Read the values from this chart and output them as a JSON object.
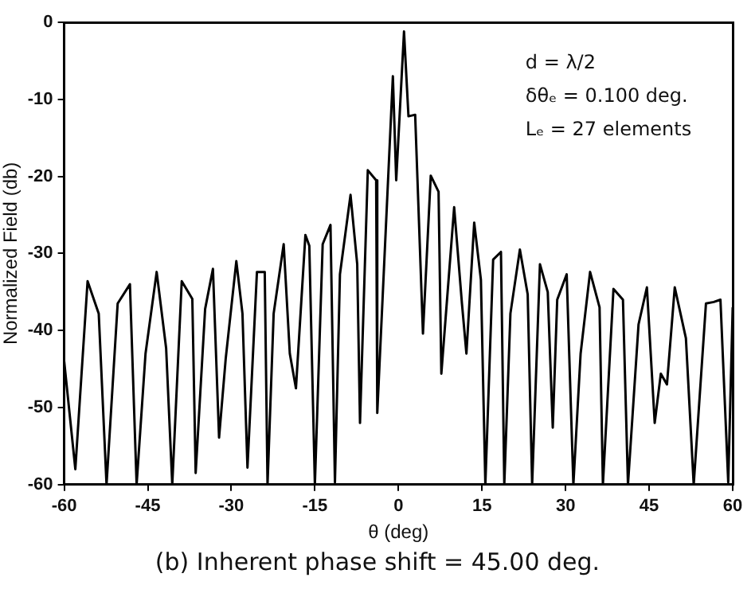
{
  "chart_data": {
    "type": "line",
    "xlabel": "θ (deg)",
    "ylabel": "Normalized Field (db)",
    "annotations": [
      "d = λ/2",
      "δθₑ = 0.100 deg.",
      "Lₑ = 27 elements",
      "(b) Inherent phase shift = 45.00 deg."
    ],
    "x": [
      -60,
      -58,
      -55.8,
      -53.8,
      -52.4,
      -50.4,
      -48.2,
      -47,
      -45.4,
      -43.4,
      -41.7,
      -40.6,
      -38.9,
      -37,
      -36.4,
      -34.7,
      -33.3,
      -32.2,
      -31,
      -29.1,
      -28,
      -27.1,
      -25.4,
      -24,
      -23.5,
      -22.4,
      -20.6,
      -19.5,
      -18.4,
      -16.7,
      -16,
      -15,
      -13.6,
      -12.2,
      -11.4,
      -10.5,
      -8.6,
      -7.4,
      -6.9,
      -5.5,
      -4,
      -3.8,
      -1,
      -0.4,
      1,
      1.8,
      3,
      4.4,
      5.8,
      7.2,
      7.7,
      10,
      11.4,
      12.2,
      13.6,
      14.8,
      15.6,
      17,
      18.4,
      19,
      20.1,
      21.8,
      23.2,
      24,
      25.4,
      26.8,
      27.7,
      28.5,
      30.2,
      31.4,
      32.7,
      34.4,
      36.1,
      36.7,
      38.6,
      40.3,
      41.2,
      43.1,
      44.6,
      46,
      47.1,
      48.2,
      49.6,
      51.6,
      53,
      55.2,
      56.6,
      57.8,
      59.2,
      60
    ],
    "values": [
      -44,
      -58,
      -33.6,
      -37.8,
      -60,
      -36.5,
      -34,
      -60,
      -43,
      -32.4,
      -42.3,
      -60,
      -33.6,
      -35.9,
      -58.5,
      -37.2,
      -32,
      -53.9,
      -43.6,
      -31,
      -37.8,
      -57.8,
      -32.4,
      -32.4,
      -60,
      -37.8,
      -28.8,
      -43,
      -47.5,
      -27.6,
      -29,
      -60,
      -28.8,
      -26.3,
      -59.7,
      -32.7,
      -22.4,
      -31.4,
      -52,
      -19.2,
      -20.5,
      -50.7,
      -7,
      -20.5,
      -1.2,
      -12.2,
      -12,
      -40.4,
      -19.9,
      -22,
      -45.6,
      -24,
      -36.5,
      -43,
      -26,
      -33.4,
      -60,
      -30.8,
      -29.8,
      -60,
      -37.8,
      -29.5,
      -35.3,
      -60,
      -31.4,
      -35,
      -52.6,
      -36,
      -32.7,
      -60,
      -43,
      -32.4,
      -37,
      -60,
      -34.6,
      -36,
      -60,
      -39.2,
      -34.4,
      -52,
      -45.6,
      -47,
      -34.4,
      -41,
      -60,
      -36.5,
      -36.3,
      -36,
      -59.7,
      -37
    ],
    "color": "#000000",
    "xlim": [
      -60,
      60
    ],
    "ylim": [
      -60,
      0
    ],
    "xticks": [
      -60,
      -45,
      -30,
      -15,
      0,
      15,
      30,
      45,
      60
    ],
    "yticks": [
      -60,
      -50,
      -40,
      -30,
      -20,
      -10,
      0
    ],
    "grid": false,
    "legend": false,
    "marker": "none",
    "line_style": "solid"
  }
}
